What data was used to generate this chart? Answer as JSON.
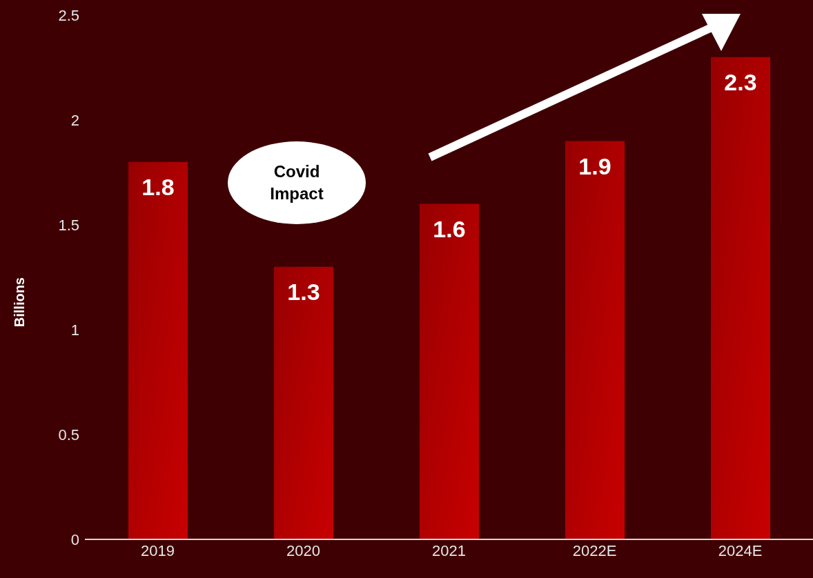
{
  "chart_data": {
    "type": "bar",
    "ylabel": "Billions",
    "categories": [
      "2019",
      "2020",
      "2021",
      "2022E",
      "2024E"
    ],
    "values": [
      1.8,
      1.3,
      1.6,
      1.9,
      2.3
    ],
    "color": "#c80000",
    "ylim": [
      0,
      2.5
    ],
    "yticks": [
      0,
      0.5,
      1,
      1.5,
      2,
      2.5
    ],
    "data_labels": true,
    "grid": false,
    "legend": false,
    "annotations": [
      "Covid Impact"
    ]
  }
}
